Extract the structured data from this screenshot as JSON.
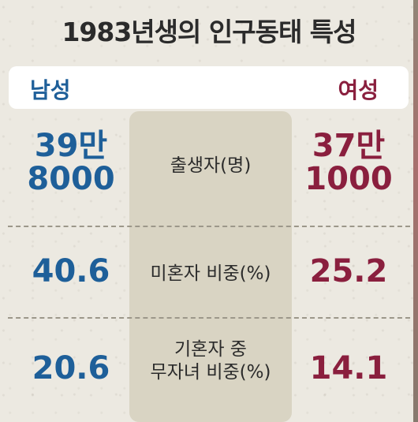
{
  "title": "1983년생의 인구동태 특성",
  "header": {
    "male_label": "남성",
    "female_label": "여성"
  },
  "rows": [
    {
      "label": "출생자(명)",
      "male": [
        "39만",
        "8000"
      ],
      "female": [
        "37만",
        "1000"
      ]
    },
    {
      "label": "미혼자 비중(%)",
      "male": "40.6",
      "female": "25.2"
    },
    {
      "label": [
        "기혼자 중",
        "무자녀 비중(%)"
      ],
      "male": "20.6",
      "female": "14.1"
    }
  ],
  "colors": {
    "male": "#1e5f99",
    "female": "#8a1f3e"
  }
}
